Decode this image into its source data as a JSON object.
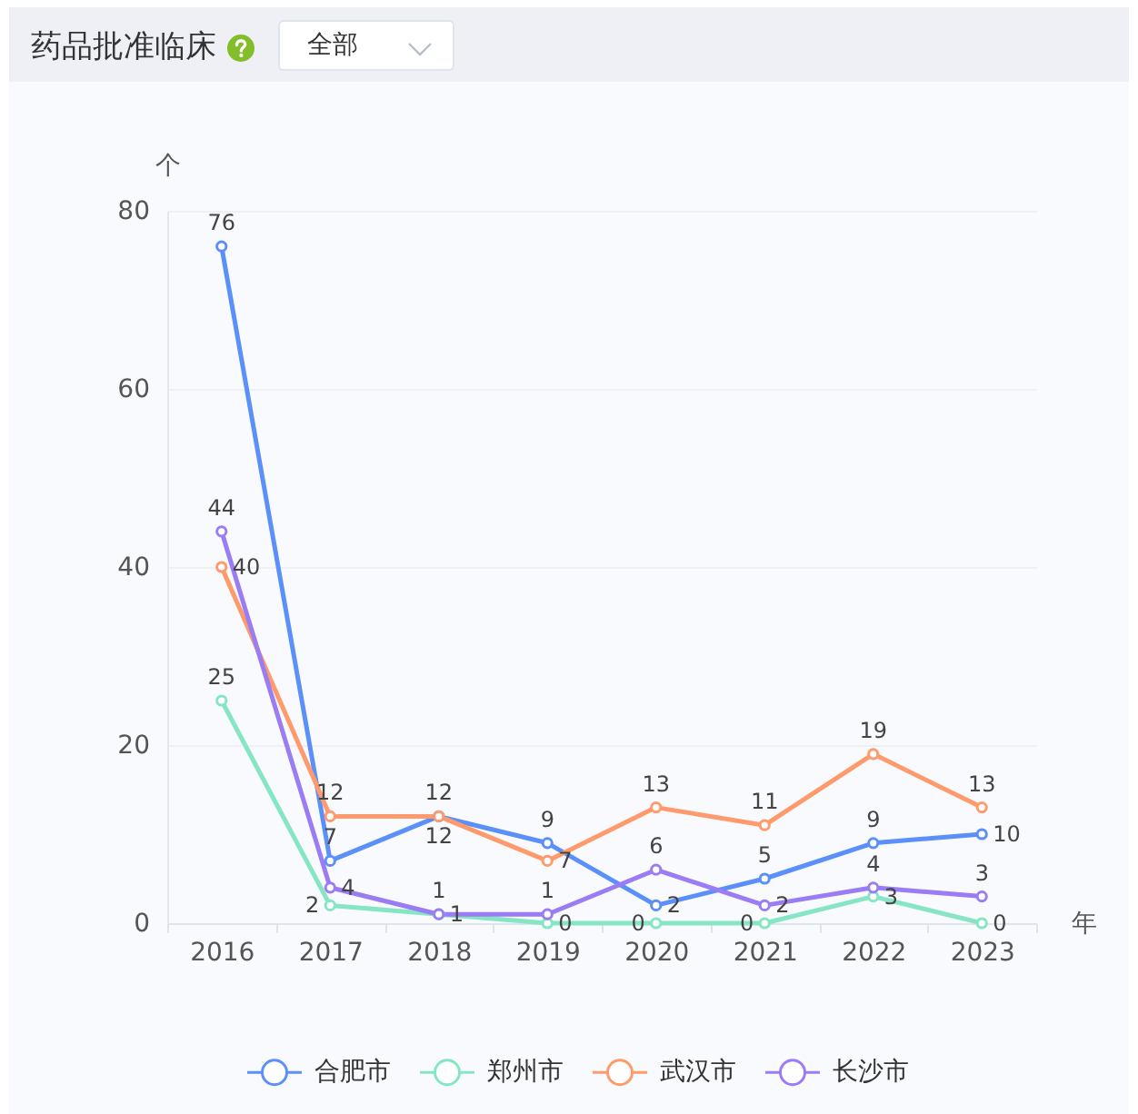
{
  "chart_data": {
    "type": "line",
    "title": "药品批准临床",
    "xlabel": "年",
    "ylabel": "个",
    "annotations": [
      "全部"
    ],
    "categories": [
      "2016",
      "2017",
      "2018",
      "2019",
      "2020",
      "2021",
      "2022",
      "2023"
    ],
    "series": [
      {
        "name": "合肥市",
        "color": "#5b8ff9",
        "values": [
          76,
          7,
          12,
          9,
          2,
          5,
          9,
          10
        ]
      },
      {
        "name": "郑州市",
        "color": "#86e6c4",
        "values": [
          25,
          2,
          1,
          0,
          0,
          0,
          3,
          0
        ]
      },
      {
        "name": "武汉市",
        "color": "#ff9a6c",
        "values": [
          40,
          12,
          12,
          7,
          13,
          11,
          19,
          13
        ]
      },
      {
        "name": "长沙市",
        "color": "#9a7cf4",
        "values": [
          44,
          4,
          1,
          1,
          6,
          2,
          4,
          3
        ]
      }
    ],
    "ylim": [
      0,
      80
    ],
    "yticks": [
      0,
      20,
      40,
      60,
      80
    ],
    "grid": "y",
    "legend": "bottom",
    "marker": "circle",
    "line_style": "solid",
    "data_labels": true
  }
}
